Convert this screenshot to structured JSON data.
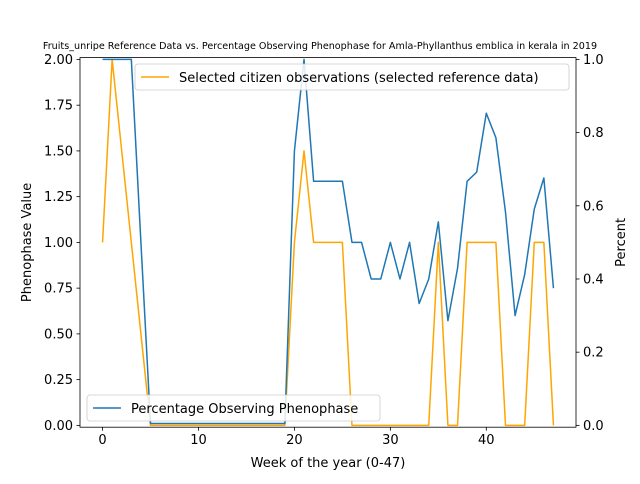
{
  "chart_data": {
    "type": "line",
    "title": "Fruits_unripe Reference Data vs. Percentage Observing Phenophase for Amla-Phyllanthus emblica in kerala in 2019",
    "xlabel": "Week of the year (0-47)",
    "ylabel_left": "Phenophase Value",
    "ylabel_right": "Percent",
    "xlim": [
      -2.35,
      49.35
    ],
    "ylim_left": [
      -0.01,
      2.01
    ],
    "ylim_right": [
      -0.005,
      1.005
    ],
    "x_ticks": [
      0,
      10,
      20,
      30,
      40
    ],
    "x_tick_labels": [
      "0",
      "10",
      "20",
      "30",
      "40"
    ],
    "y_left_ticks": [
      0,
      0.25,
      0.5,
      0.75,
      1.0,
      1.25,
      1.5,
      1.75,
      2.0
    ],
    "y_left_tick_labels": [
      "0.00",
      "0.25",
      "0.50",
      "0.75",
      "1.00",
      "1.25",
      "1.50",
      "1.75",
      "2.00"
    ],
    "y_right_ticks": [
      0,
      0.2,
      0.4,
      0.6,
      0.8,
      1.0
    ],
    "y_right_tick_labels": [
      "0.0",
      "0.2",
      "0.4",
      "0.6",
      "0.8",
      "1.0"
    ],
    "series": [
      {
        "name": "Selected citizen observations (selected reference data)",
        "axis": "left",
        "color": "#ffa500",
        "x": [
          0,
          1,
          2,
          3,
          4,
          5,
          6,
          7,
          8,
          9,
          10,
          11,
          12,
          13,
          14,
          15,
          16,
          17,
          18,
          19,
          20,
          21,
          22,
          23,
          24,
          25,
          26,
          27,
          28,
          29,
          30,
          31,
          32,
          33,
          34,
          35,
          36,
          37,
          38,
          39,
          40,
          41,
          42,
          43,
          44,
          45,
          46,
          47
        ],
        "values": [
          1.0,
          2.0,
          1.5,
          1.0,
          0.5,
          0.0,
          0.0,
          0.0,
          0.0,
          0.0,
          0.0,
          0.0,
          0.0,
          0.0,
          0.0,
          0.0,
          0.0,
          0.0,
          0.0,
          0.0,
          1.0,
          1.5,
          1.0,
          1.0,
          1.0,
          1.0,
          0.0,
          0.0,
          0.0,
          0.0,
          0.0,
          0.0,
          0.0,
          0.0,
          0.0,
          1.0,
          0.0,
          0.0,
          1.0,
          1.0,
          1.0,
          1.0,
          0.0,
          0.0,
          0.0,
          1.0,
          1.0,
          0.0
        ]
      },
      {
        "name": "Percentage Observing Phenophase",
        "axis": "right",
        "color": "#1f77b4",
        "x": [
          0,
          1,
          2,
          3,
          4,
          5,
          6,
          7,
          8,
          9,
          10,
          11,
          12,
          13,
          14,
          15,
          16,
          17,
          18,
          19,
          20,
          21,
          22,
          23,
          24,
          25,
          26,
          27,
          28,
          29,
          30,
          31,
          32,
          33,
          34,
          35,
          36,
          37,
          38,
          39,
          40,
          41,
          42,
          43,
          44,
          45,
          46,
          47
        ],
        "values": [
          1.0,
          1.0,
          1.0,
          1.0,
          0.5,
          0.005,
          0.005,
          0.005,
          0.005,
          0.005,
          0.005,
          0.005,
          0.005,
          0.005,
          0.005,
          0.005,
          0.005,
          0.005,
          0.005,
          0.005,
          0.75,
          1.0,
          0.667,
          0.667,
          0.667,
          0.667,
          0.5,
          0.5,
          0.4,
          0.4,
          0.5,
          0.4,
          0.5,
          0.333,
          0.4,
          0.556,
          0.286,
          0.429,
          0.667,
          0.692,
          0.853,
          0.786,
          0.583,
          0.3,
          0.412,
          0.591,
          0.676,
          0.375
        ]
      }
    ],
    "legend_top": "top-right",
    "legend_bottom": "bottom-left",
    "grid": false
  }
}
